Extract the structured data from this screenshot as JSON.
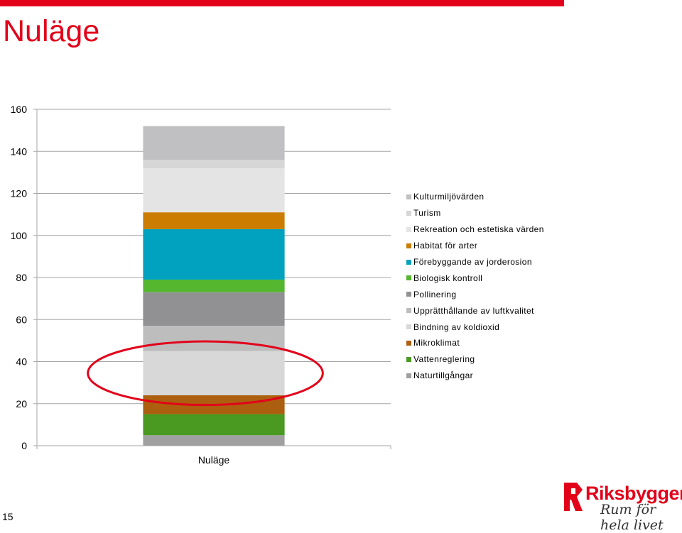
{
  "slide": {
    "title": "Nuläge",
    "page_number": "15"
  },
  "logo": {
    "name": "Riksbyggen",
    "tagline": "Rum för hela livet",
    "color": "#e2001a"
  },
  "colors": {
    "accent": "#e2001a",
    "highlight_ellipse": "#e2001a"
  },
  "chart_data": {
    "type": "bar",
    "stacked": true,
    "categories": [
      "Nuläge"
    ],
    "ylim": [
      0,
      160
    ],
    "yticks": [
      "0",
      "20",
      "40",
      "60",
      "80",
      "100",
      "120",
      "140",
      "160"
    ],
    "grid": true,
    "legend_position": "right",
    "series": [
      {
        "name": "Naturtillgångar",
        "values": [
          5
        ],
        "color": "#a0a0a0"
      },
      {
        "name": "Vattenreglering",
        "values": [
          10
        ],
        "color": "#4a9a22"
      },
      {
        "name": "Mikroklimat",
        "values": [
          9
        ],
        "color": "#ac5f0e"
      },
      {
        "name": "Bindning av koldioxid",
        "values": [
          21
        ],
        "color": "#d8d8d8"
      },
      {
        "name": "Upprätthållande av luftkvalitet",
        "values": [
          12
        ],
        "color": "#bdbdbe"
      },
      {
        "name": "Pollinering",
        "values": [
          16
        ],
        "color": "#919194"
      },
      {
        "name": "Biologisk kontroll",
        "values": [
          6
        ],
        "color": "#55b630"
      },
      {
        "name": "Förebyggande av jorderosion",
        "values": [
          24
        ],
        "color": "#00a2bf"
      },
      {
        "name": "Habitat för arter",
        "values": [
          8
        ],
        "color": "#cc7c00"
      },
      {
        "name": "Rekreation och estetiska värden",
        "values": [
          21
        ],
        "color": "#e4e4e4"
      },
      {
        "name": "Turism",
        "values": [
          4
        ],
        "color": "#d6d6d6"
      },
      {
        "name": "Kulturmiljövärden",
        "values": [
          16
        ],
        "color": "#c0c0c2"
      }
    ],
    "annotation": {
      "type": "ellipse",
      "around_values": [
        24,
        45
      ],
      "color": "#e2001a"
    }
  }
}
